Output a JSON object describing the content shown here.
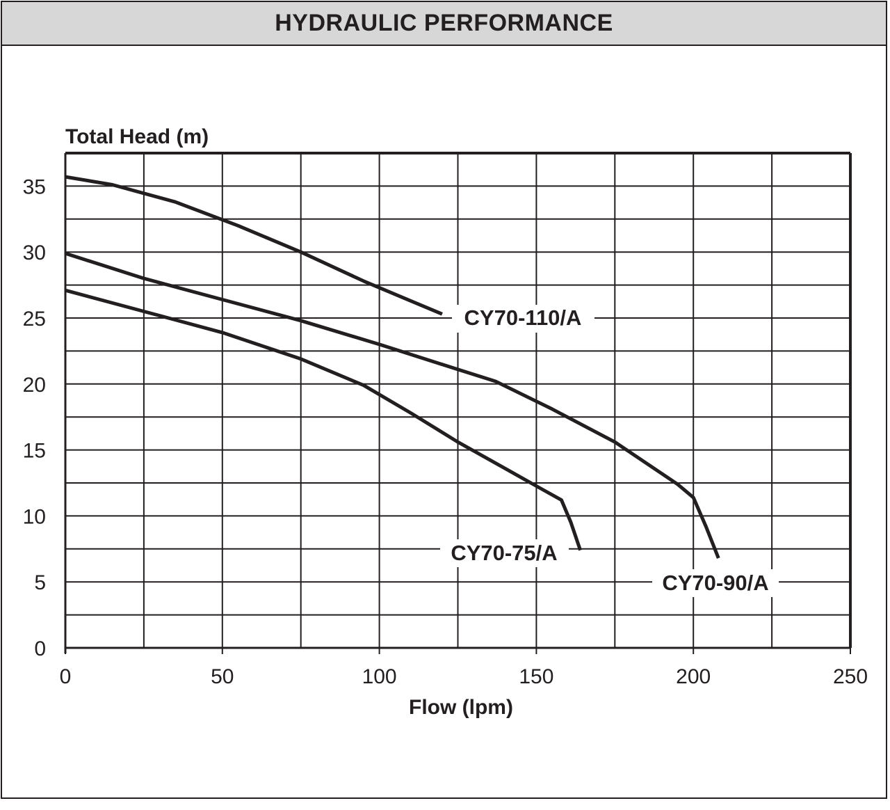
{
  "header": {
    "title": "HYDRAULIC PERFORMANCE"
  },
  "colors": {
    "line": "#231f20",
    "header_bg": "#d7d7d7",
    "background": "#ffffff"
  },
  "chart_data": {
    "type": "line",
    "title": "",
    "xlabel": "Flow (lpm)",
    "ylabel": "Total Head (m)",
    "xlim": [
      0,
      250
    ],
    "ylim": [
      0,
      37.5
    ],
    "xticks": [
      0,
      50,
      100,
      150,
      200,
      250
    ],
    "yticks": [
      0,
      5,
      10,
      15,
      20,
      25,
      30,
      35
    ],
    "grid": {
      "x_step": 25,
      "y_step": 2.5
    },
    "series": [
      {
        "name": "CY70-110/A",
        "x": [
          0,
          15,
          35,
          55,
          75,
          95,
          110,
          120
        ],
        "y": [
          35.7,
          35.1,
          33.8,
          32.0,
          30.0,
          27.8,
          26.3,
          25.3
        ]
      },
      {
        "name": "CY70-90/A",
        "x": [
          0,
          25,
          50,
          75,
          100,
          125,
          137,
          155,
          175,
          195,
          200,
          204,
          208
        ],
        "y": [
          29.9,
          28.0,
          26.4,
          24.8,
          23.0,
          21.1,
          20.2,
          18.1,
          15.6,
          12.4,
          11.4,
          9.2,
          6.8
        ]
      },
      {
        "name": "CY70-75/A",
        "x": [
          0,
          25,
          50,
          75,
          95,
          110,
          125,
          140,
          152,
          158,
          161,
          164
        ],
        "y": [
          27.1,
          25.5,
          23.9,
          21.9,
          19.9,
          17.8,
          15.6,
          13.6,
          12.0,
          11.2,
          9.5,
          7.4
        ]
      }
    ]
  }
}
